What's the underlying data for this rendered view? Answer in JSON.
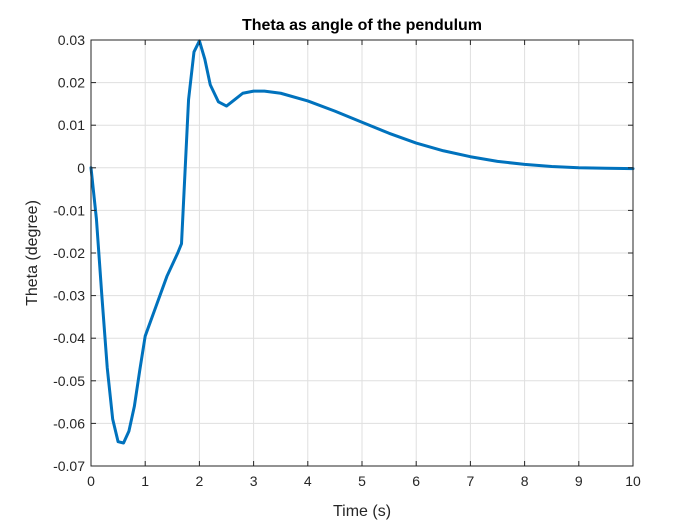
{
  "chart_data": {
    "type": "line",
    "title": "Theta as angle of the pendulum",
    "xlabel": "Time (s)",
    "ylabel": "Theta (degree)",
    "xlim": [
      0,
      10
    ],
    "ylim": [
      -0.07,
      0.03
    ],
    "grid": true,
    "x_ticks": [
      "0",
      "1",
      "2",
      "3",
      "4",
      "5",
      "6",
      "7",
      "8",
      "9",
      "10"
    ],
    "y_ticks": [
      "0.03",
      "0.02",
      "0.01",
      "0",
      "-0.01",
      "-0.02",
      "-0.03",
      "-0.04",
      "-0.05",
      "-0.06",
      "-0.07"
    ],
    "series": [
      {
        "color": "#0072BD",
        "x": [
          0,
          0.1,
          0.2,
          0.3,
          0.4,
          0.5,
          0.6,
          0.7,
          0.8,
          0.9,
          1.0,
          1.2,
          1.4,
          1.6,
          1.67,
          1.8,
          1.9,
          2.0,
          2.1,
          2.2,
          2.35,
          2.5,
          2.65,
          2.8,
          3.0,
          3.2,
          3.5,
          4.0,
          4.5,
          5.0,
          5.5,
          6.0,
          6.5,
          7.0,
          7.5,
          8.0,
          8.5,
          9.0,
          9.5,
          10.0
        ],
        "y": [
          0,
          -0.012,
          -0.03,
          -0.047,
          -0.059,
          -0.0643,
          -0.0646,
          -0.0618,
          -0.056,
          -0.0475,
          -0.0395,
          -0.0325,
          -0.0255,
          -0.02,
          -0.0178,
          0.016,
          0.0272,
          0.0298,
          0.0255,
          0.0195,
          0.0155,
          0.0145,
          0.016,
          0.0175,
          0.018,
          0.018,
          0.0175,
          0.0157,
          0.0133,
          0.0107,
          0.0081,
          0.0058,
          0.004,
          0.0026,
          0.0015,
          0.0008,
          0.0003,
          0.0,
          -0.0001,
          -0.0002
        ]
      }
    ]
  }
}
